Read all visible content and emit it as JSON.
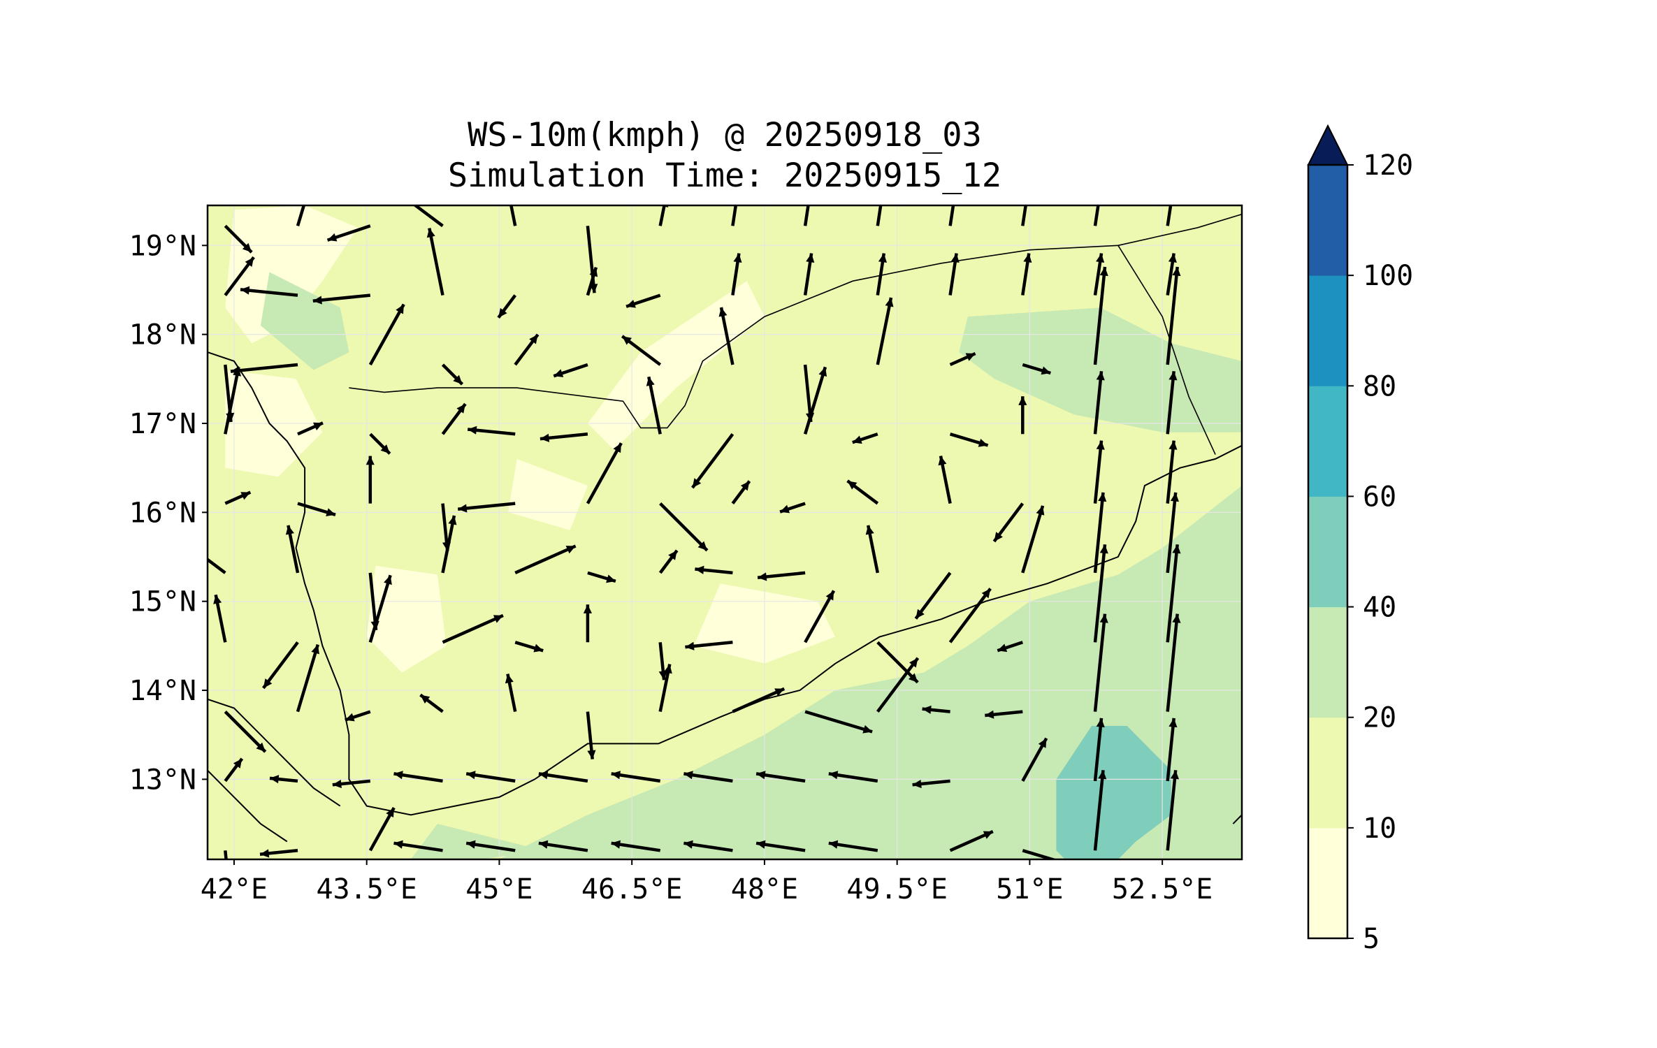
{
  "title_line1": "WS-10m(kmph) @ 20250918_03",
  "title_line2": "Simulation Time: 20250915_12",
  "map": {
    "lon_range": [
      41.7,
      53.4
    ],
    "lat_range": [
      12.1,
      19.45
    ],
    "lon_ticks": [
      {
        "value": 42.0,
        "label": "42°E"
      },
      {
        "value": 43.5,
        "label": "43.5°E"
      },
      {
        "value": 45.0,
        "label": "45°E"
      },
      {
        "value": 46.5,
        "label": "46.5°E"
      },
      {
        "value": 48.0,
        "label": "48°E"
      },
      {
        "value": 49.5,
        "label": "49.5°E"
      },
      {
        "value": 51.0,
        "label": "51°E"
      },
      {
        "value": 52.5,
        "label": "52.5°E"
      }
    ],
    "lat_ticks": [
      {
        "value": 19,
        "label": "19°N"
      },
      {
        "value": 18,
        "label": "18°N"
      },
      {
        "value": 17,
        "label": "17°N"
      },
      {
        "value": 16,
        "label": "16°N"
      },
      {
        "value": 15,
        "label": "15°N"
      },
      {
        "value": 14,
        "label": "14°N"
      },
      {
        "value": 13,
        "label": "13°N"
      }
    ],
    "grid": true
  },
  "colorbar": {
    "levels": [
      5,
      10,
      20,
      40,
      60,
      80,
      100,
      120
    ],
    "tick_labels": [
      "5",
      "10",
      "20",
      "40",
      "60",
      "80",
      "100",
      "120"
    ],
    "colors": [
      "#ffffd9",
      "#edf8b1",
      "#c7e9b4",
      "#7fcdbb",
      "#41b6c4",
      "#1d91c0",
      "#225ea8",
      "#253494"
    ],
    "extend_color": "#081d58",
    "extend": "max"
  },
  "colors": {
    "arrow": "#000000",
    "coastline": "#000000",
    "grid": "#e6e6e6",
    "land_band_light": "#edf8b1",
    "land_band_mid": "#c7e9b4",
    "land_band_high": "#7fcdbb",
    "calm": "#ffffd9"
  }
}
